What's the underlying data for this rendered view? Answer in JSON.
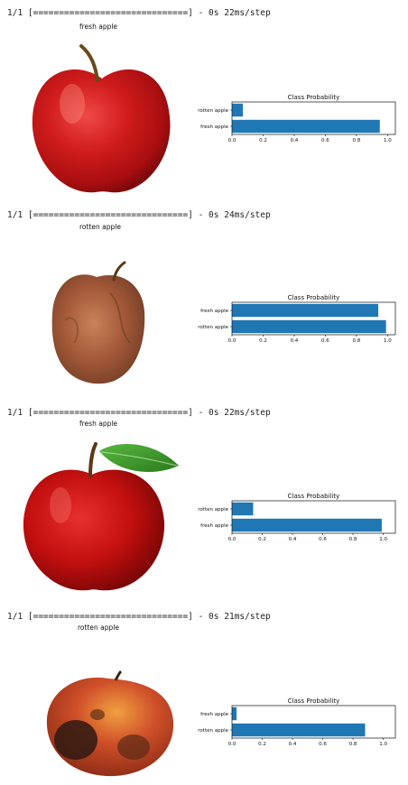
{
  "blocks": [
    {
      "log": "1/1 [==============================] - 0s 22ms/step",
      "prediction": "fresh apple",
      "photo_icon": "fresh-red-apple-icon",
      "chart_data": {
        "type": "bar",
        "orientation": "horizontal",
        "title": "Class Probability",
        "categories": [
          "fresh apple",
          "rotten apple"
        ],
        "values": [
          0.95,
          0.07
        ],
        "xlim": [
          0,
          1.05
        ],
        "xticks": [
          "0.0",
          "0.2",
          "0.4",
          "0.6",
          "0.8",
          "1.0"
        ],
        "bar_color": "#1f77b4"
      }
    },
    {
      "log": "1/1 [==============================] - 0s 24ms/step",
      "prediction": "rotten apple",
      "photo_icon": "rotten-apple-icon",
      "chart_data": {
        "type": "bar",
        "orientation": "horizontal",
        "title": "Class Probability",
        "categories": [
          "rotten apple",
          "fresh apple"
        ],
        "values": [
          0.99,
          0.94
        ],
        "xlim": [
          0,
          1.05
        ],
        "xticks": [
          "0.0",
          "0.2",
          "0.4",
          "0.6",
          "0.8",
          "1.0"
        ],
        "bar_color": "#1f77b4"
      }
    },
    {
      "log": "1/1 [==============================] - 0s 22ms/step",
      "prediction": "fresh apple",
      "photo_icon": "fresh-apple-with-leaf-icon",
      "chart_data": {
        "type": "bar",
        "orientation": "horizontal",
        "title": "Class Probability",
        "categories": [
          "fresh apple",
          "rotten apple"
        ],
        "values": [
          0.99,
          0.14
        ],
        "xlim": [
          0,
          1.08
        ],
        "xticks": [
          "0.0",
          "0.2",
          "0.4",
          "0.6",
          "0.8",
          "1.0"
        ],
        "bar_color": "#1f77b4"
      }
    },
    {
      "log": "1/1 [==============================] - 0s 21ms/step",
      "prediction": "rotten apple",
      "photo_icon": "rotten-apple-bruised-icon",
      "chart_data": {
        "type": "bar",
        "orientation": "horizontal",
        "title": "Class Probability",
        "categories": [
          "rotten apple",
          "fresh apple"
        ],
        "values": [
          0.88,
          0.03
        ],
        "xlim": [
          0,
          1.08
        ],
        "xticks": [
          "0.0",
          "0.2",
          "0.4",
          "0.6",
          "0.8",
          "1.0"
        ],
        "bar_color": "#1f77b4"
      }
    }
  ]
}
